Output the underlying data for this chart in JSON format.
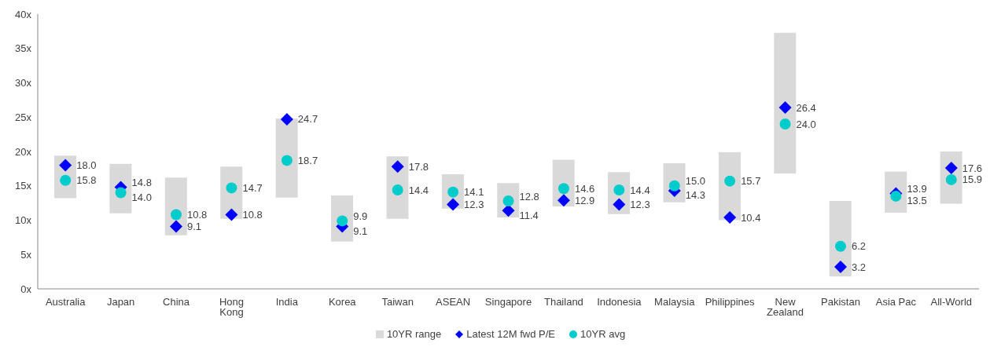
{
  "chart_data": {
    "type": "bar",
    "categories": [
      "Australia",
      "Japan",
      "China",
      "Hong Kong",
      "India",
      "Korea",
      "Taiwan",
      "ASEAN",
      "Singapore",
      "Thailand",
      "Indonesia",
      "Malaysia",
      "Philippines",
      "New Zealand",
      "Pakistan",
      "Asia Pac",
      "All-World"
    ],
    "series": [
      {
        "name": "10YR range",
        "color": "#d9d9d9",
        "base": [
          13.2,
          11.0,
          7.8,
          10.2,
          13.3,
          6.9,
          10.2,
          11.7,
          10.4,
          12.0,
          10.9,
          12.6,
          10.0,
          16.8,
          1.8,
          11.1,
          12.4
        ],
        "values": [
          6.2,
          7.2,
          8.4,
          7.6,
          11.5,
          6.7,
          9.1,
          5.0,
          5.0,
          6.8,
          6.1,
          5.7,
          9.9,
          20.5,
          11.0,
          6.0,
          7.6
        ]
      },
      {
        "name": "Latest 12M fwd P/E",
        "type": "scatter",
        "marker": "diamond",
        "color": "#0000ff",
        "values": [
          18.0,
          14.8,
          9.1,
          10.8,
          24.7,
          9.1,
          17.8,
          12.3,
          11.4,
          12.9,
          12.3,
          14.3,
          10.4,
          26.4,
          3.2,
          13.9,
          17.6
        ],
        "value_labels": [
          "18.0",
          "14.8",
          "9.1",
          "10.8",
          "24.7",
          "9.1",
          "17.8",
          "12.3",
          "11.4",
          "12.9",
          "12.3",
          "14.3",
          "10.4",
          "26.4",
          "3.2",
          "13.9",
          "17.6"
        ]
      },
      {
        "name": "10YR avg",
        "type": "scatter",
        "marker": "circle",
        "color": "#00cccc",
        "values": [
          15.8,
          14.0,
          10.8,
          14.7,
          18.7,
          9.9,
          14.4,
          14.1,
          12.8,
          14.6,
          14.4,
          15.0,
          15.7,
          24.0,
          6.2,
          13.5,
          15.9
        ],
        "value_labels": [
          "15.8",
          "14.0",
          "10.8",
          "14.7",
          "18.7",
          "9.9",
          "14.4",
          "14.1",
          "12.8",
          "14.6",
          "14.4",
          "15.0",
          "15.7",
          "24.0",
          "6.2",
          "13.5",
          "15.9"
        ]
      }
    ],
    "ylim": [
      0,
      40
    ],
    "yticks": [
      {
        "value": 0,
        "label": "0x"
      },
      {
        "value": 5,
        "label": "5x"
      },
      {
        "value": 10,
        "label": "10x"
      },
      {
        "value": 15,
        "label": "15x"
      },
      {
        "value": 20,
        "label": "20x"
      },
      {
        "value": 25,
        "label": "25x"
      },
      {
        "value": 30,
        "label": "30x"
      },
      {
        "value": 35,
        "label": "35x"
      },
      {
        "value": 40,
        "label": "40x"
      }
    ],
    "grid": false,
    "legend": "bottom"
  }
}
